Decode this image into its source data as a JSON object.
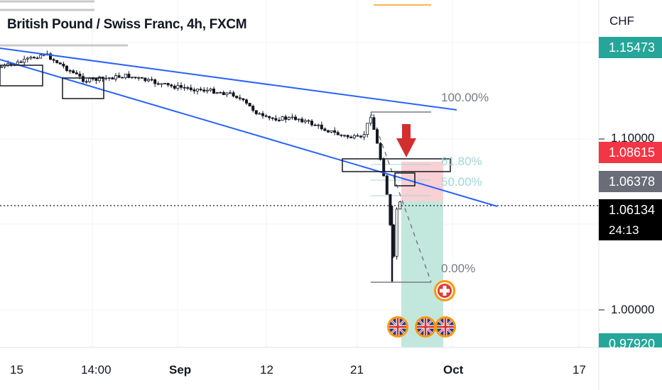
{
  "header": {
    "title": "British Pound / Swiss Franc, 4h, FXCM",
    "currency": "CHF"
  },
  "price_axis": {
    "labels": [
      {
        "text": "1.10000",
        "bold": false
      },
      {
        "text": "1.00000",
        "bold": false
      }
    ],
    "tags": [
      {
        "name": "top-price-tag",
        "text": "1.15473",
        "color": "#26a69a"
      },
      {
        "name": "stop-price-tag",
        "text": "1.08615",
        "color": "#f23645"
      },
      {
        "name": "entry-price-tag",
        "text": "1.06378",
        "color": "#6a6d78"
      },
      {
        "name": "last-price-tag",
        "text": "1.06134",
        "color": "#000000"
      },
      {
        "name": "target-price-tag",
        "text": "0.97920",
        "color": "#26a69a"
      }
    ],
    "countdown": "24:13"
  },
  "time_axis": {
    "labels": [
      {
        "text": "15",
        "bold": false
      },
      {
        "text": "14:00",
        "bold": false
      },
      {
        "text": "Sep",
        "bold": true
      },
      {
        "text": "12",
        "bold": false
      },
      {
        "text": "21",
        "bold": false
      },
      {
        "text": "Oct",
        "bold": true
      },
      {
        "text": "17",
        "bold": false
      }
    ]
  },
  "fibonacci": {
    "levels": [
      {
        "label": "100.00%",
        "color": "#787b86"
      },
      {
        "label": "61.80%",
        "color": "#9fd8d8"
      },
      {
        "label": "50.00%",
        "color": "#9fd8d8"
      },
      {
        "label": "0.00%",
        "color": "#787b86"
      }
    ]
  },
  "annotations": {
    "arrow_color": "#d32f2f",
    "trendline_color": "#2962ff",
    "profit_zone_color": "#b7e4d7",
    "loss_zone_color": "#f8c8cc",
    "events": [
      {
        "name": "uk-flag-icon",
        "country": "United Kingdom"
      },
      {
        "name": "uk-flag-icon",
        "country": "United Kingdom"
      },
      {
        "name": "uk-flag-icon",
        "country": "United Kingdom"
      },
      {
        "name": "swiss-flag-icon",
        "country": "Switzerland"
      }
    ]
  },
  "chart_data": {
    "type": "candlestick",
    "title": "British Pound / Swiss Franc, 4h, FXCM",
    "symbol": "GBPCHF",
    "interval": "4h",
    "source": "FXCM",
    "x_ticks": [
      "15",
      "14:00",
      "Sep",
      "12",
      "21",
      "Oct",
      "17"
    ],
    "y_ticks": [
      1.1,
      1.0
    ],
    "close_path": [
      {
        "x": "Aug 15",
        "y": 1.142
      },
      {
        "x": "Aug 17",
        "y": 1.145
      },
      {
        "x": "Aug 18",
        "y": 1.15
      },
      {
        "x": "Aug 22",
        "y": 1.134
      },
      {
        "x": "Aug 26",
        "y": 1.137
      },
      {
        "x": "Sep 1",
        "y": 1.131
      },
      {
        "x": "Sep 5",
        "y": 1.128
      },
      {
        "x": "Sep 7",
        "y": 1.126
      },
      {
        "x": "Sep 12",
        "y": 1.112
      },
      {
        "x": "Sep 15",
        "y": 1.112
      },
      {
        "x": "Sep 19",
        "y": 1.102
      },
      {
        "x": "Sep 21",
        "y": 1.1
      },
      {
        "x": "Sep 22",
        "y": 1.114
      },
      {
        "x": "Sep 23",
        "y": 1.08
      },
      {
        "x": "Sep 25",
        "y": 1.06
      },
      {
        "x": "Sep 26",
        "y": 1.021
      },
      {
        "x": "Sep 27",
        "y": 1.058
      },
      {
        "x": "Sep 28",
        "y": 1.064
      }
    ],
    "last_price": 1.06134,
    "fib_levels": {
      "100%": 1.115,
      "61.8%": 1.0835,
      "50%": 1.0738,
      "0%": 1.0165
    },
    "position": {
      "stop": 1.08615,
      "entry": 1.06378,
      "target": 0.9792
    },
    "drawn_levels": {
      "upper_trendline": "falling",
      "lower_trendline": "falling"
    }
  }
}
